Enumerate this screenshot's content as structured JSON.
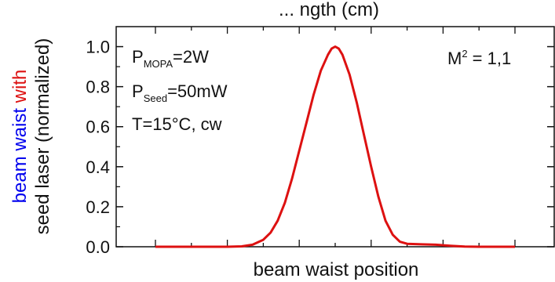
{
  "chart_data": {
    "type": "line",
    "title": "... ngth (cm)",
    "xlabel": "beam waist position",
    "ylabel": {
      "line1_parts": [
        {
          "text": "beam waist ",
          "color": "#0000ee"
        },
        {
          "text": "with",
          "color": "#dd1111"
        }
      ],
      "line2": "seed laser (normalized)",
      "line2_color": "#0000ee"
    },
    "ylim": [
      0.0,
      1.1
    ],
    "xlim": [
      0,
      10
    ],
    "y_ticks": [
      "0.0",
      "0.2",
      "0.4",
      "0.6",
      "0.8",
      "1.0"
    ],
    "x_tick_labels_shown": false,
    "grid": false,
    "legend_placement": "top-right",
    "series": [
      {
        "name": "M2 = 1,1",
        "color": "#dd1111",
        "x": [
          0.0,
          2.0,
          2.4,
          2.7,
          3.0,
          3.2,
          3.4,
          3.6,
          3.8,
          4.0,
          4.2,
          4.4,
          4.6,
          4.8,
          4.9,
          5.0,
          5.1,
          5.2,
          5.4,
          5.6,
          5.8,
          6.0,
          6.2,
          6.4,
          6.6,
          6.8,
          7.0,
          7.4,
          7.8,
          8.2,
          8.6,
          9.0,
          10.0
        ],
        "y": [
          0.0,
          0.0,
          0.002,
          0.01,
          0.035,
          0.07,
          0.13,
          0.22,
          0.34,
          0.48,
          0.62,
          0.76,
          0.88,
          0.96,
          0.99,
          1.0,
          0.99,
          0.96,
          0.86,
          0.72,
          0.56,
          0.4,
          0.25,
          0.13,
          0.06,
          0.025,
          0.015,
          0.012,
          0.01,
          0.005,
          0.001,
          0.0,
          0.0
        ]
      }
    ]
  },
  "annotations": {
    "p_mopa": {
      "main": "P",
      "sub": "MOPA",
      "rest": "=2W"
    },
    "p_seed": {
      "main": "P",
      "sub": "Seed",
      "rest": "=50mW"
    },
    "temp": "T=15°C, cw",
    "m2": {
      "prefix": "M",
      "sup": "2",
      "rest": " = 1,1",
      "color": "#dd1111"
    }
  }
}
